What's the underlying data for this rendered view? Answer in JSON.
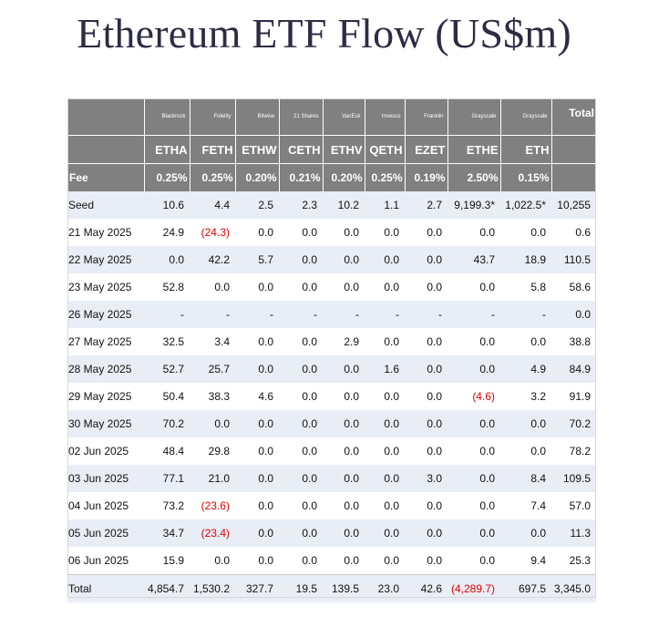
{
  "title": "Ethereum ETF Flow (US$m)",
  "issuers": [
    "Blackrock",
    "Fidelity",
    "Bitwise",
    "21 Shares",
    "VanEck",
    "Invesco",
    "Franklin",
    "Grayscale",
    "Grayscale"
  ],
  "total_label": "Total",
  "tickers": [
    "ETHA",
    "FETH",
    "ETHW",
    "CETH",
    "ETHV",
    "QETH",
    "EZET",
    "ETHE",
    "ETH"
  ],
  "fee_label": "Fee",
  "fees": [
    "0.25%",
    "0.25%",
    "0.20%",
    "0.21%",
    "0.20%",
    "0.25%",
    "0.19%",
    "2.50%",
    "0.15%"
  ],
  "rows": [
    {
      "label": "Seed",
      "values": [
        "10.6",
        "4.4",
        "2.5",
        "2.3",
        "10.2",
        "1.1",
        "2.7",
        "9,199.3*",
        "1,022.5*",
        "10,255"
      ]
    },
    {
      "label": "21 May 2025",
      "values": [
        "24.9",
        "(24.3)",
        "0.0",
        "0.0",
        "0.0",
        "0.0",
        "0.0",
        "0.0",
        "0.0",
        "0.6"
      ]
    },
    {
      "label": "22 May 2025",
      "values": [
        "0.0",
        "42.2",
        "5.7",
        "0.0",
        "0.0",
        "0.0",
        "0.0",
        "43.7",
        "18.9",
        "110.5"
      ]
    },
    {
      "label": "23 May 2025",
      "values": [
        "52.8",
        "0.0",
        "0.0",
        "0.0",
        "0.0",
        "0.0",
        "0.0",
        "0.0",
        "5.8",
        "58.6"
      ]
    },
    {
      "label": "26 May 2025",
      "values": [
        "-",
        "-",
        "-",
        "-",
        "-",
        "-",
        "-",
        "-",
        "-",
        "0.0"
      ]
    },
    {
      "label": "27 May 2025",
      "values": [
        "32.5",
        "3.4",
        "0.0",
        "0.0",
        "2.9",
        "0.0",
        "0.0",
        "0.0",
        "0.0",
        "38.8"
      ]
    },
    {
      "label": "28 May 2025",
      "values": [
        "52.7",
        "25.7",
        "0.0",
        "0.0",
        "0.0",
        "1.6",
        "0.0",
        "0.0",
        "4.9",
        "84.9"
      ]
    },
    {
      "label": "29 May 2025",
      "values": [
        "50.4",
        "38.3",
        "4.6",
        "0.0",
        "0.0",
        "0.0",
        "0.0",
        "(4.6)",
        "3.2",
        "91.9"
      ]
    },
    {
      "label": "30 May 2025",
      "values": [
        "70.2",
        "0.0",
        "0.0",
        "0.0",
        "0.0",
        "0.0",
        "0.0",
        "0.0",
        "0.0",
        "70.2"
      ]
    },
    {
      "label": "02 Jun 2025",
      "values": [
        "48.4",
        "29.8",
        "0.0",
        "0.0",
        "0.0",
        "0.0",
        "0.0",
        "0.0",
        "0.0",
        "78.2"
      ]
    },
    {
      "label": "03 Jun 2025",
      "values": [
        "77.1",
        "21.0",
        "0.0",
        "0.0",
        "0.0",
        "0.0",
        "3.0",
        "0.0",
        "8.4",
        "109.5"
      ]
    },
    {
      "label": "04 Jun 2025",
      "values": [
        "73.2",
        "(23.6)",
        "0.0",
        "0.0",
        "0.0",
        "0.0",
        "0.0",
        "0.0",
        "7.4",
        "57.0"
      ]
    },
    {
      "label": "05 Jun 2025",
      "values": [
        "34.7",
        "(23.4)",
        "0.0",
        "0.0",
        "0.0",
        "0.0",
        "0.0",
        "0.0",
        "0.0",
        "11.3"
      ]
    },
    {
      "label": "06 Jun 2025",
      "values": [
        "15.9",
        "0.0",
        "0.0",
        "0.0",
        "0.0",
        "0.0",
        "0.0",
        "0.0",
        "9.4",
        "25.3"
      ]
    },
    {
      "label": "Total",
      "values": [
        "4,854.7",
        "1,530.2",
        "327.7",
        "19.5",
        "139.5",
        "23.0",
        "42.6",
        "(4,289.7)",
        "697.5",
        "3,345.0"
      ]
    }
  ],
  "colors": {
    "header_bg": "#808080",
    "row_alt_bg": "#e9edf5",
    "negative": "#e00000",
    "title": "#2c2c44"
  }
}
